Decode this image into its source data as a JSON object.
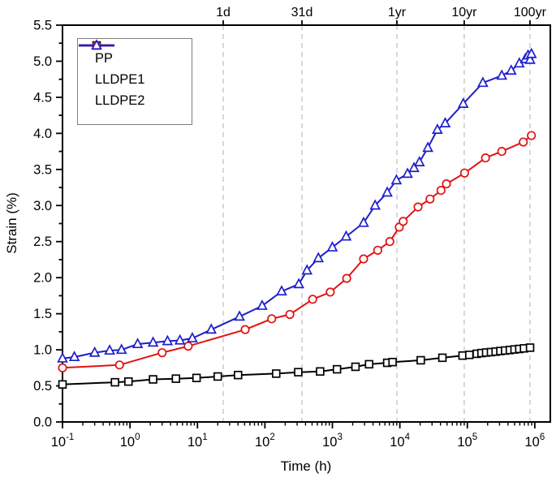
{
  "chart_data": {
    "type": "line",
    "title": "",
    "xlabel": "Time (h)",
    "ylabel": "Strain (%)",
    "x_scale": "log",
    "x_range_log": [
      -1,
      6.23
    ],
    "ylim": [
      0,
      5.5
    ],
    "y_major_step": 0.5,
    "y_minor_step": 0.25,
    "x_decade_exponents": [
      -1,
      0,
      1,
      2,
      3,
      4,
      5,
      6
    ],
    "grid": "vertical-dashed-at-time-marks",
    "gridline_color": "#bdbdbd",
    "frame_color": "#000000",
    "background_color": "#ffffff",
    "legend_position": "top-left-inside",
    "time_marks": [
      {
        "label": "1d",
        "log": 1.382
      },
      {
        "label": "31d",
        "log": 2.549
      },
      {
        "label": "1yr",
        "log": 3.956
      },
      {
        "label": "10yr",
        "log": 4.954
      },
      {
        "label": "100yr",
        "log": 5.928
      }
    ],
    "series": [
      {
        "name": "PP",
        "color": "#000000",
        "marker": "square",
        "points": [
          [
            0.1,
            0.52
          ],
          [
            0.6,
            0.55
          ],
          [
            0.95,
            0.56
          ],
          [
            2.2,
            0.59
          ],
          [
            4.8,
            0.6
          ],
          [
            9.7,
            0.61
          ],
          [
            20,
            0.63
          ],
          [
            40,
            0.65
          ],
          [
            147,
            0.67
          ],
          [
            312,
            0.69
          ],
          [
            658,
            0.7
          ],
          [
            1170,
            0.73
          ],
          [
            2200,
            0.765
          ],
          [
            3500,
            0.8
          ],
          [
            6500,
            0.82
          ],
          [
            7800,
            0.83
          ],
          [
            20400,
            0.855
          ],
          [
            42700,
            0.89
          ],
          [
            85000,
            0.92
          ],
          [
            107000,
            0.93
          ],
          [
            138000,
            0.945
          ],
          [
            162000,
            0.955
          ],
          [
            190000,
            0.962
          ],
          [
            224000,
            0.968
          ],
          [
            263000,
            0.975
          ],
          [
            309000,
            0.983
          ],
          [
            363000,
            0.99
          ],
          [
            427000,
            0.997
          ],
          [
            501000,
            1.005
          ],
          [
            589000,
            1.012
          ],
          [
            692000,
            1.02
          ],
          [
            851000,
            1.03
          ]
        ]
      },
      {
        "name": "LLDPE1",
        "color": "#e01212",
        "marker": "circle",
        "points": [
          [
            0.1,
            0.75
          ],
          [
            0.7,
            0.79
          ],
          [
            3,
            0.96
          ],
          [
            7.3,
            1.05
          ],
          [
            51,
            1.28
          ],
          [
            126,
            1.43
          ],
          [
            234,
            1.49
          ],
          [
            510,
            1.7
          ],
          [
            930,
            1.8
          ],
          [
            1630,
            1.99
          ],
          [
            2900,
            2.26
          ],
          [
            4700,
            2.38
          ],
          [
            7100,
            2.5
          ],
          [
            9800,
            2.7
          ],
          [
            11200,
            2.78
          ],
          [
            18600,
            2.98
          ],
          [
            28000,
            3.09
          ],
          [
            40700,
            3.21
          ],
          [
            49000,
            3.3
          ],
          [
            91000,
            3.45
          ],
          [
            186000,
            3.66
          ],
          [
            324000,
            3.75
          ],
          [
            676000,
            3.88
          ],
          [
            891000,
            3.97
          ]
        ]
      },
      {
        "name": "LLDPE2",
        "color": "#1e1ecd",
        "marker": "triangle",
        "points": [
          [
            0.1,
            0.88
          ],
          [
            0.15,
            0.9
          ],
          [
            0.3,
            0.96
          ],
          [
            0.5,
            0.99
          ],
          [
            0.75,
            1.0
          ],
          [
            1.3,
            1.08
          ],
          [
            2.2,
            1.1
          ],
          [
            3.6,
            1.12
          ],
          [
            5.5,
            1.13
          ],
          [
            8.4,
            1.16
          ],
          [
            16,
            1.28
          ],
          [
            42,
            1.46
          ],
          [
            91,
            1.61
          ],
          [
            177,
            1.81
          ],
          [
            318,
            1.91
          ],
          [
            420,
            2.1
          ],
          [
            620,
            2.27
          ],
          [
            1000,
            2.42
          ],
          [
            1600,
            2.57
          ],
          [
            2900,
            2.76
          ],
          [
            4300,
            3.0
          ],
          [
            6500,
            3.18
          ],
          [
            8900,
            3.35
          ],
          [
            13000,
            3.44
          ],
          [
            16200,
            3.52
          ],
          [
            19500,
            3.6
          ],
          [
            26000,
            3.8
          ],
          [
            36000,
            4.05
          ],
          [
            47000,
            4.14
          ],
          [
            87000,
            4.41
          ],
          [
            170000,
            4.7
          ],
          [
            324000,
            4.8
          ],
          [
            447000,
            4.87
          ],
          [
            589000,
            4.97
          ],
          [
            724000,
            5.03
          ],
          [
            794000,
            5.08
          ],
          [
            851000,
            5.02
          ],
          [
            891000,
            5.1
          ]
        ]
      }
    ]
  }
}
